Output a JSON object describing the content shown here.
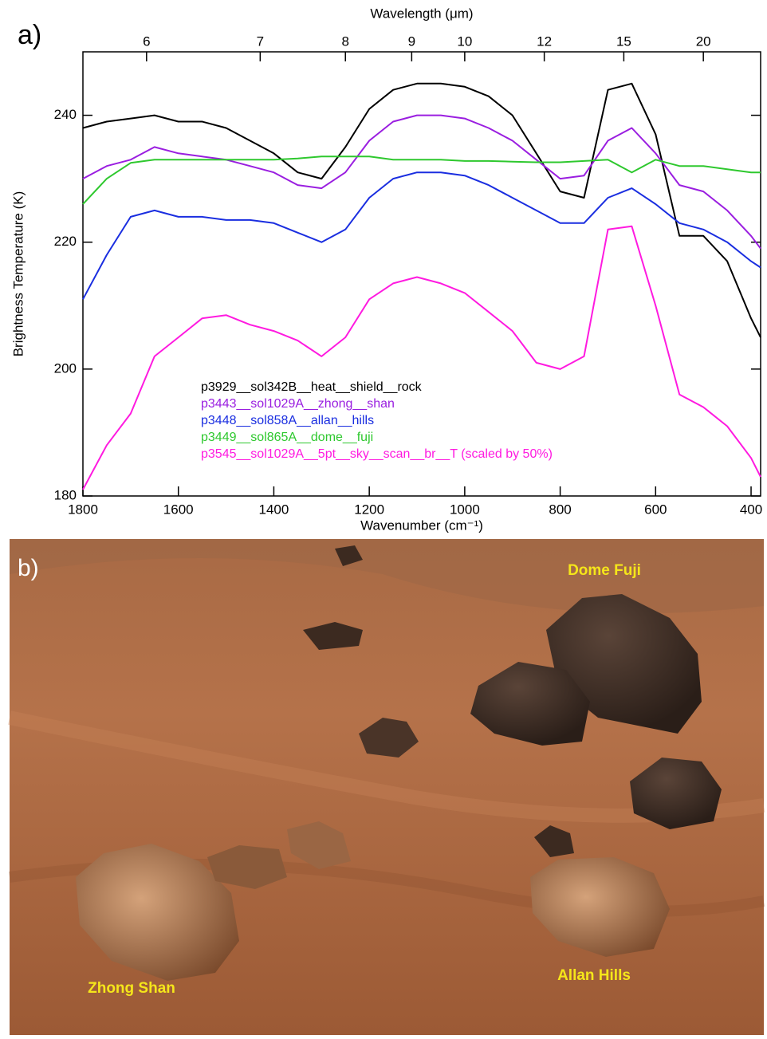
{
  "panel_labels": [
    "a)",
    "b)"
  ],
  "chart_data": {
    "type": "line",
    "x2label": "Wavelength (μm)",
    "xlabel": "Wavenumber (cm⁻¹)",
    "ylabel": "Brightness Temperature (K)",
    "x": [
      1800,
      1750,
      1700,
      1650,
      1600,
      1550,
      1500,
      1450,
      1400,
      1350,
      1300,
      1250,
      1200,
      1150,
      1100,
      1050,
      1000,
      950,
      900,
      850,
      800,
      750,
      700,
      650,
      600,
      550,
      500,
      450,
      400,
      380
    ],
    "xlim": [
      1800,
      380
    ],
    "xticks": [
      1800,
      1600,
      1400,
      1200,
      1000,
      800,
      600,
      400
    ],
    "x2ticks": [
      6,
      7,
      8,
      9,
      10,
      12,
      15,
      20
    ],
    "ylim": [
      180,
      250
    ],
    "yticks": [
      180,
      200,
      220,
      240
    ],
    "legend": "lower left",
    "series": [
      {
        "name": "p3929__sol342B__heat__shield__rock",
        "color": "#000000",
        "values": [
          238,
          239,
          239.5,
          240,
          239,
          239,
          238,
          236,
          234,
          231,
          230,
          235,
          241,
          244,
          245,
          245,
          244.5,
          243,
          240,
          234,
          228,
          227,
          244,
          245,
          237,
          221,
          221,
          217,
          208,
          205
        ]
      },
      {
        "name": "p3443__sol1029A__zhong__shan",
        "color": "#9a1ee0",
        "values": [
          230,
          232,
          233,
          235,
          234,
          233.5,
          233,
          232,
          231,
          229,
          228.5,
          231,
          236,
          239,
          240,
          240,
          239.5,
          238,
          236,
          233,
          230,
          230.5,
          236,
          238,
          234,
          229,
          228,
          225,
          221,
          219
        ]
      },
      {
        "name": "p3448__sol858A__allan__hills",
        "color": "#1a2ee0",
        "values": [
          211,
          218,
          224,
          225,
          224,
          224,
          223.5,
          223.5,
          223,
          221.5,
          220,
          222,
          227,
          230,
          231,
          231,
          230.5,
          229,
          227,
          225,
          223,
          223,
          227,
          228.5,
          226,
          223,
          222,
          220,
          217,
          216
        ]
      },
      {
        "name": "p3449__sol865A__dome__fuji",
        "color": "#2ec82e",
        "values": [
          226,
          230,
          232.5,
          233,
          233,
          233,
          233,
          233,
          233,
          233.2,
          233.5,
          233.5,
          233.5,
          233,
          233,
          233,
          232.8,
          232.8,
          232.7,
          232.6,
          232.6,
          232.8,
          233,
          231,
          233,
          232,
          232,
          231.5,
          231,
          231
        ]
      },
      {
        "name": "p3545__sol1029A__5pt__sky__scan__br__T (scaled by 50%)",
        "color": "#ff1ae0",
        "values": [
          181,
          188,
          193,
          202,
          205,
          208,
          208.5,
          207,
          206,
          204.5,
          202,
          205,
          211,
          213.5,
          214.5,
          213.5,
          212,
          209,
          206,
          201,
          200,
          202,
          222,
          222.5,
          210,
          196,
          194,
          191,
          186,
          183
        ]
      }
    ]
  },
  "photo": {
    "labels": [
      "Dome Fuji",
      "Zhong Shan",
      "Allan Hills"
    ]
  }
}
